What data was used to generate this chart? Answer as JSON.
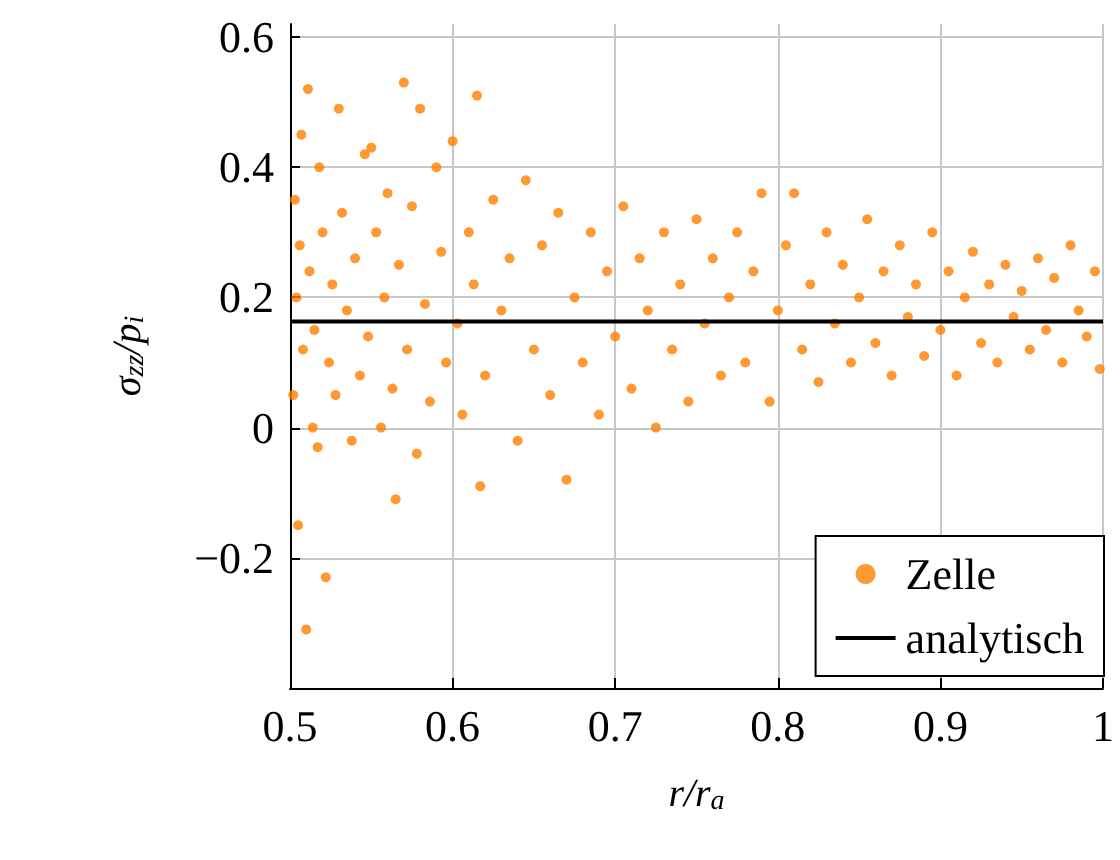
{
  "chart_data": {
    "type": "scatter",
    "xlabel": "r/r$_{a}$",
    "ylabel": "σ$_{zz}$/p$_{i}$",
    "xlim": [
      0.5,
      1
    ],
    "xticks": [
      0.5,
      0.6,
      0.7,
      0.8,
      0.9,
      1
    ],
    "ylim": [
      -0.4,
      0.62
    ],
    "yticks": [
      -0.2,
      0,
      0.2,
      0.4,
      0.6
    ],
    "grid": true,
    "legend": "bottom right",
    "series": [
      {
        "name": "Zelle",
        "type": "scatter",
        "marker": "circle",
        "color": "#ff8000",
        "x": [
          0.502,
          0.503,
          0.504,
          0.505,
          0.506,
          0.507,
          0.508,
          0.51,
          0.511,
          0.512,
          0.514,
          0.515,
          0.517,
          0.518,
          0.52,
          0.522,
          0.524,
          0.526,
          0.528,
          0.53,
          0.532,
          0.535,
          0.538,
          0.54,
          0.543,
          0.546,
          0.548,
          0.55,
          0.553,
          0.556,
          0.558,
          0.56,
          0.563,
          0.565,
          0.567,
          0.57,
          0.572,
          0.575,
          0.578,
          0.58,
          0.583,
          0.586,
          0.59,
          0.593,
          0.596,
          0.6,
          0.603,
          0.606,
          0.61,
          0.613,
          0.615,
          0.617,
          0.62,
          0.625,
          0.63,
          0.635,
          0.64,
          0.645,
          0.65,
          0.655,
          0.66,
          0.665,
          0.67,
          0.675,
          0.68,
          0.685,
          0.69,
          0.695,
          0.7,
          0.705,
          0.71,
          0.715,
          0.72,
          0.725,
          0.73,
          0.735,
          0.74,
          0.745,
          0.75,
          0.755,
          0.76,
          0.765,
          0.77,
          0.775,
          0.78,
          0.785,
          0.79,
          0.795,
          0.8,
          0.805,
          0.81,
          0.815,
          0.82,
          0.825,
          0.83,
          0.835,
          0.84,
          0.845,
          0.85,
          0.855,
          0.86,
          0.865,
          0.87,
          0.875,
          0.88,
          0.885,
          0.89,
          0.895,
          0.9,
          0.905,
          0.91,
          0.915,
          0.92,
          0.925,
          0.93,
          0.935,
          0.94,
          0.945,
          0.95,
          0.955,
          0.96,
          0.965,
          0.97,
          0.975,
          0.98,
          0.985,
          0.99,
          0.995,
          0.998
        ],
        "values": [
          0.05,
          0.35,
          0.2,
          -0.15,
          0.28,
          0.45,
          0.12,
          -0.31,
          0.52,
          0.24,
          0.0,
          0.15,
          -0.03,
          0.4,
          0.3,
          -0.23,
          0.1,
          0.22,
          0.05,
          0.49,
          0.33,
          0.18,
          -0.02,
          0.26,
          0.08,
          0.42,
          0.14,
          0.43,
          0.3,
          0.0,
          0.2,
          0.36,
          0.06,
          -0.11,
          0.25,
          0.53,
          0.12,
          0.34,
          -0.04,
          0.49,
          0.19,
          0.04,
          0.4,
          0.27,
          0.1,
          0.44,
          0.16,
          0.02,
          0.3,
          0.22,
          0.51,
          -0.09,
          0.08,
          0.35,
          0.18,
          0.26,
          -0.02,
          0.38,
          0.12,
          0.28,
          0.05,
          0.33,
          -0.08,
          0.2,
          0.1,
          0.3,
          0.02,
          0.24,
          0.14,
          0.34,
          0.06,
          0.26,
          0.18,
          0.0,
          0.3,
          0.12,
          0.22,
          0.04,
          0.32,
          0.16,
          0.26,
          0.08,
          0.2,
          0.3,
          0.1,
          0.24,
          0.36,
          0.04,
          0.18,
          0.28,
          0.36,
          0.12,
          0.22,
          0.07,
          0.3,
          0.16,
          0.25,
          0.1,
          0.2,
          0.32,
          0.13,
          0.24,
          0.08,
          0.28,
          0.17,
          0.22,
          0.11,
          0.3,
          0.15,
          0.24,
          0.08,
          0.2,
          0.27,
          0.13,
          0.22,
          0.1,
          0.25,
          0.17,
          0.21,
          0.12,
          0.26,
          0.15,
          0.23,
          0.1,
          0.28,
          0.18,
          0.14,
          0.24,
          0.09
        ]
      },
      {
        "name": "analytisch",
        "type": "line",
        "marker": "none",
        "color": "#000000",
        "x": [
          0.5,
          1
        ],
        "values": [
          0.163,
          0.163
        ]
      }
    ]
  }
}
